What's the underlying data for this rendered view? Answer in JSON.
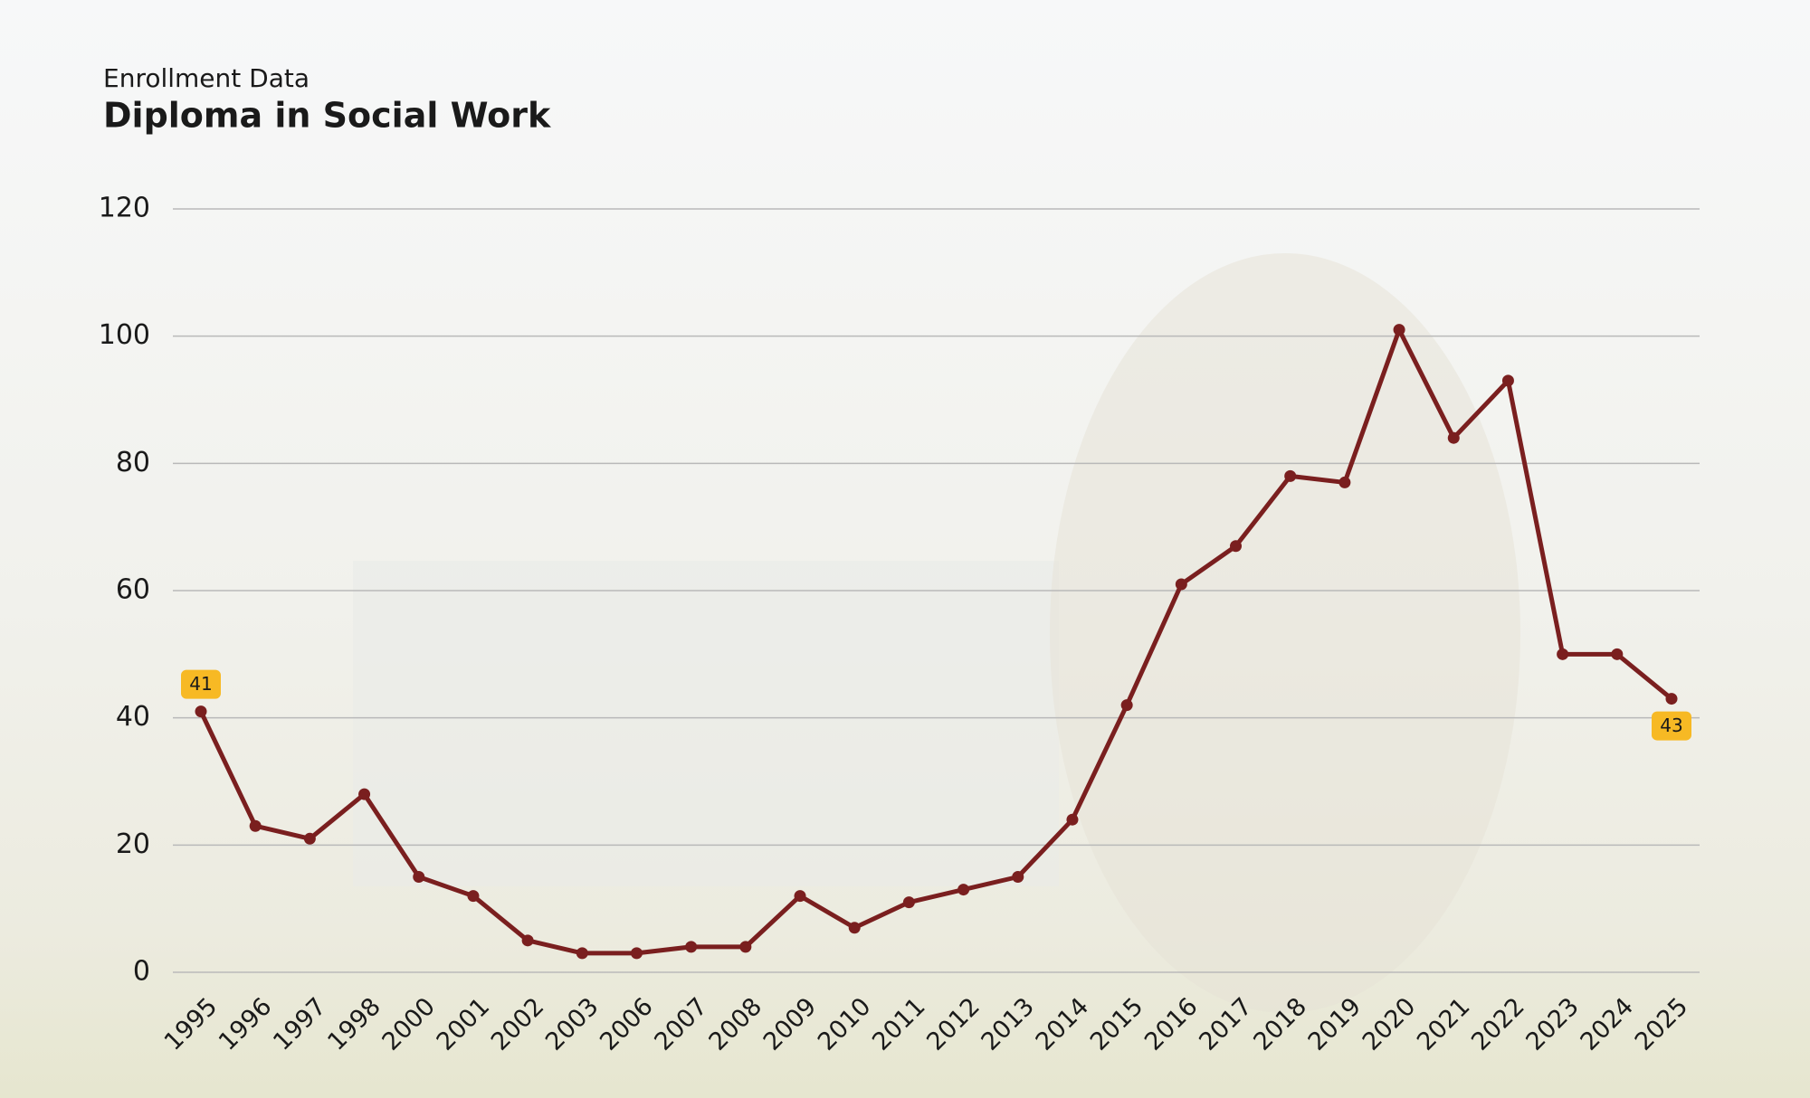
{
  "chart_data": {
    "type": "line",
    "subtitle": "Enrollment Data",
    "title": "Diploma in Social Work",
    "categories": [
      "1995",
      "1996",
      "1997",
      "1998",
      "2000",
      "2001",
      "2002",
      "2003",
      "2006",
      "2007",
      "2008",
      "2009",
      "2010",
      "2011",
      "2012",
      "2013",
      "2014",
      "2015",
      "2016",
      "2017",
      "2018",
      "2019",
      "2020",
      "2021",
      "2022",
      "2023",
      "2024",
      "2025"
    ],
    "values": [
      41,
      23,
      21,
      28,
      15,
      12,
      5,
      3,
      3,
      4,
      4,
      12,
      7,
      11,
      13,
      15,
      24,
      42,
      61,
      67,
      78,
      77,
      101,
      84,
      93,
      50,
      50,
      43
    ],
    "color": "#7a1f1f",
    "ylim": [
      0,
      120
    ],
    "yticks": [
      0,
      20,
      40,
      60,
      80,
      100,
      120
    ],
    "grid": true
  }
}
